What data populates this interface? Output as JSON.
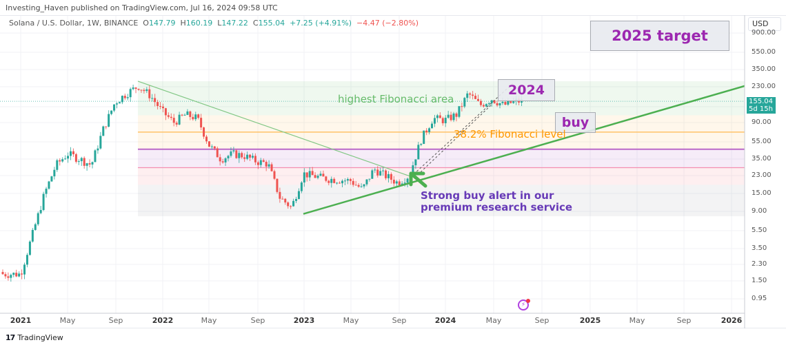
{
  "header": {
    "published": "Investing_Haven published on TradingView.com, Jul 16, 2024 09:58 UTC",
    "symbol": "Solana / U.S. Dollar, 1W, BINANCE",
    "open_label": "O",
    "open": "147.79",
    "high_label": "H",
    "high": "160.19",
    "low_label": "L",
    "low": "147.22",
    "close_label": "C",
    "close": "155.04",
    "change": "+7.25 (+4.91%)",
    "change2": "−4.47 (−2.80%)"
  },
  "price_axis": {
    "currency": "USD",
    "current_price": "155.04",
    "countdown": "5d 15h",
    "ticks": [
      "900.00",
      "550.00",
      "350.00",
      "230.00",
      "90.00",
      "55.00",
      "35.00",
      "23.00",
      "15.00",
      "9.00",
      "5.50",
      "3.50",
      "2.30",
      "1.50",
      "0.95"
    ]
  },
  "time_axis": {
    "ticks": [
      {
        "label": "2021",
        "bold": true
      },
      {
        "label": "May",
        "bold": false
      },
      {
        "label": "Sep",
        "bold": false
      },
      {
        "label": "2022",
        "bold": true
      },
      {
        "label": "May",
        "bold": false
      },
      {
        "label": "Sep",
        "bold": false
      },
      {
        "label": "2023",
        "bold": true
      },
      {
        "label": "May",
        "bold": false
      },
      {
        "label": "Sep",
        "bold": false
      },
      {
        "label": "2024",
        "bold": true
      },
      {
        "label": "May",
        "bold": false
      },
      {
        "label": "Sep",
        "bold": false
      },
      {
        "label": "2025",
        "bold": true
      },
      {
        "label": "May",
        "bold": false
      },
      {
        "label": "Sep",
        "bold": false
      },
      {
        "label": "2026",
        "bold": true
      }
    ]
  },
  "annotations": {
    "target_2025": "2025 target",
    "label_2024": "2024",
    "buy": "buy",
    "fib_area": "highest Fibonacci area",
    "fib_level": "38.2% Fibonacci level",
    "alert_line1": "Strong buy alert in our",
    "alert_line2": "premium research service"
  },
  "footer": {
    "logo": "17",
    "brand": "TradingView"
  },
  "colors": {
    "up": "#26a69a",
    "down": "#ef5350",
    "trendline": "#4caf50",
    "annotation_purple": "#9c27b0",
    "alert_purple": "#673ab7",
    "fib_orange": "#ff9800",
    "fib_green_text": "#66bb6a"
  },
  "chart_data": {
    "type": "candlestick",
    "title": "Solana / U.S. Dollar, 1W, BINANCE",
    "xlabel": "",
    "ylabel": "USD",
    "yscale": "log",
    "ylim": [
      0.8,
      1000
    ],
    "xlim": [
      "2021-01",
      "2026-02"
    ],
    "grid": true,
    "approx_weekly_closes": [
      {
        "date": "2021-01",
        "price": 1.8
      },
      {
        "date": "2021-02",
        "price": 5.0
      },
      {
        "date": "2021-03",
        "price": 14
      },
      {
        "date": "2021-04",
        "price": 30
      },
      {
        "date": "2021-05",
        "price": 40
      },
      {
        "date": "2021-06",
        "price": 35
      },
      {
        "date": "2021-07",
        "price": 30
      },
      {
        "date": "2021-08",
        "price": 75
      },
      {
        "date": "2021-09",
        "price": 150
      },
      {
        "date": "2021-10",
        "price": 190
      },
      {
        "date": "2021-11",
        "price": 230
      },
      {
        "date": "2021-12",
        "price": 180
      },
      {
        "date": "2022-01",
        "price": 120
      },
      {
        "date": "2022-02",
        "price": 90
      },
      {
        "date": "2022-03",
        "price": 110
      },
      {
        "date": "2022-04",
        "price": 100
      },
      {
        "date": "2022-05",
        "price": 50
      },
      {
        "date": "2022-06",
        "price": 35
      },
      {
        "date": "2022-07",
        "price": 40
      },
      {
        "date": "2022-08",
        "price": 38
      },
      {
        "date": "2022-09",
        "price": 33
      },
      {
        "date": "2022-10",
        "price": 31
      },
      {
        "date": "2022-11",
        "price": 13
      },
      {
        "date": "2022-12",
        "price": 10
      },
      {
        "date": "2023-01",
        "price": 24
      },
      {
        "date": "2023-03",
        "price": 21
      },
      {
        "date": "2023-05",
        "price": 20
      },
      {
        "date": "2023-06",
        "price": 16
      },
      {
        "date": "2023-07",
        "price": 27
      },
      {
        "date": "2023-09",
        "price": 19
      },
      {
        "date": "2023-10",
        "price": 23
      },
      {
        "date": "2023-11",
        "price": 58
      },
      {
        "date": "2023-12",
        "price": 100
      },
      {
        "date": "2024-01",
        "price": 95
      },
      {
        "date": "2024-02",
        "price": 110
      },
      {
        "date": "2024-03",
        "price": 190
      },
      {
        "date": "2024-04",
        "price": 140
      },
      {
        "date": "2024-05",
        "price": 165
      },
      {
        "date": "2024-06",
        "price": 140
      },
      {
        "date": "2024-07",
        "price": 155
      }
    ],
    "fibonacci_levels": [
      {
        "name": "top",
        "price": 260
      },
      {
        "name": "upper",
        "price": 108
      },
      {
        "name": "38.2%",
        "price": 70
      },
      {
        "name": "mid",
        "price": 45
      },
      {
        "name": "lower",
        "price": 28
      },
      {
        "name": "low",
        "price": 18
      },
      {
        "name": "bottom",
        "price": 8
      }
    ],
    "trendlines": [
      {
        "name": "descending",
        "from": {
          "date": "2021-11",
          "price": 260
        },
        "to": {
          "date": "2023-10",
          "price": 22
        }
      },
      {
        "name": "ascending support",
        "from": {
          "date": "2022-12",
          "price": 8.5
        },
        "to": {
          "date": "2026-02",
          "price": 230
        }
      }
    ],
    "annotations": [
      "2025 target",
      "2024",
      "buy",
      "highest Fibonacci area",
      "38.2% Fibonacci level",
      "Strong buy alert in our premium research service"
    ]
  }
}
